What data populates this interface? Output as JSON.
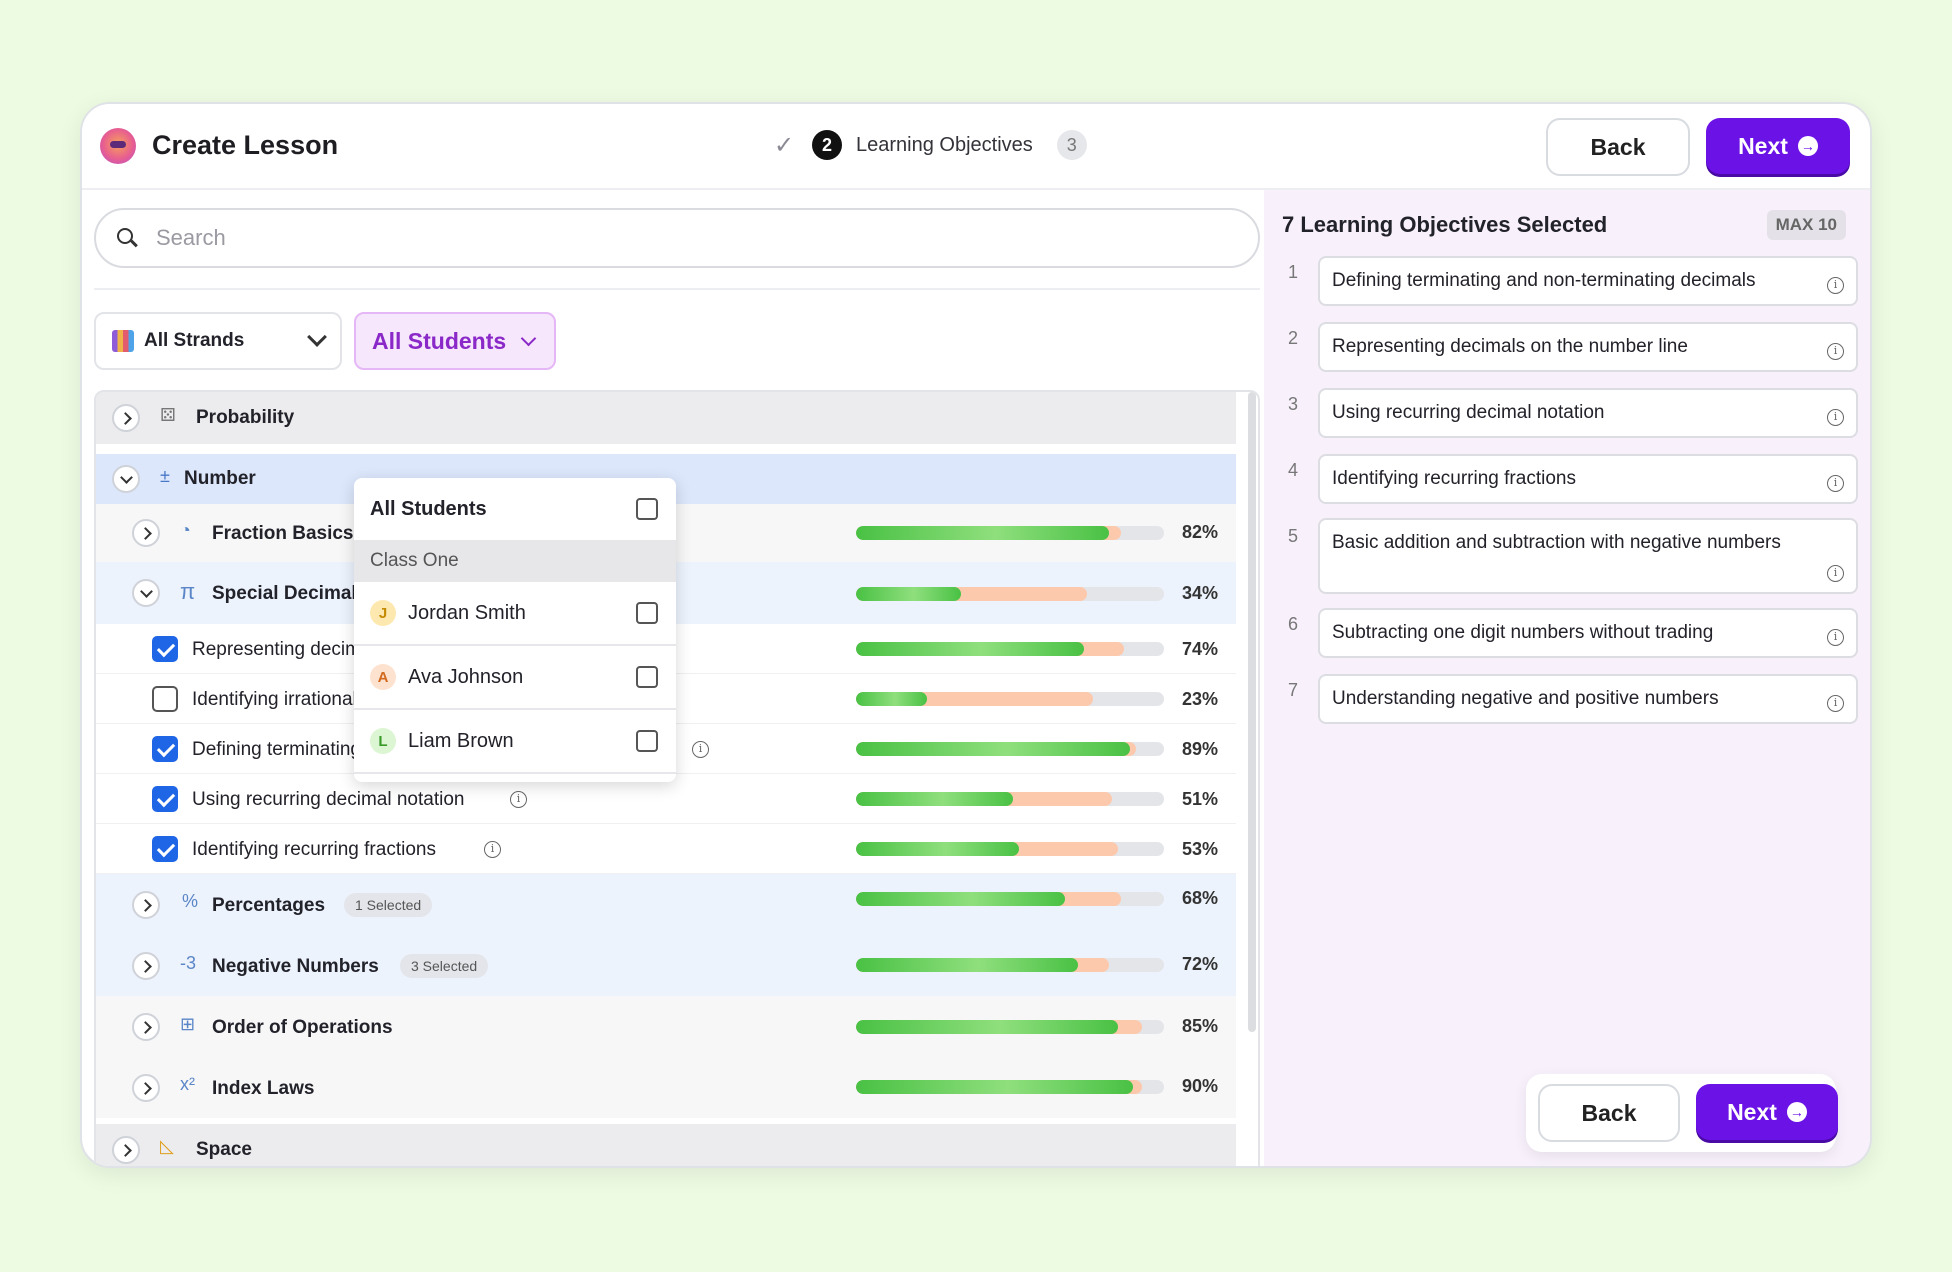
{
  "header": {
    "title": "Create Lesson",
    "steps": {
      "current_num": "2",
      "current_label": "Learning Objectives",
      "next_num": "3"
    },
    "back_label": "Back",
    "next_label": "Next"
  },
  "search": {
    "placeholder": "Search"
  },
  "filters": {
    "strands_label": "All Strands",
    "students_label": "All Students"
  },
  "tree": {
    "probability": "Probability",
    "number": "Number",
    "fraction_basics": {
      "label": "Fraction Basics",
      "pct": "82%",
      "green": 82,
      "orange": 86
    },
    "special_decimals": {
      "label": "Special Decimals",
      "pct": "34%",
      "green": 34,
      "orange": 75
    },
    "objectives": [
      {
        "label": "Representing decimals on the number line",
        "checked": true,
        "pct": "74%",
        "green": 74,
        "orange": 87
      },
      {
        "label": "Identifying irrational numbers",
        "checked": false,
        "pct": "23%",
        "green": 23,
        "orange": 77
      },
      {
        "label": "Defining terminating and non-terminating decimals",
        "checked": true,
        "pct": "89%",
        "green": 89,
        "orange": 91
      },
      {
        "label": "Using recurring decimal notation",
        "checked": true,
        "pct": "51%",
        "green": 51,
        "orange": 83
      },
      {
        "label": "Identifying recurring fractions",
        "checked": true,
        "pct": "53%",
        "green": 53,
        "orange": 85
      }
    ],
    "percentages": {
      "label": "Percentages",
      "badge": "1 Selected",
      "pct": "68%",
      "green": 68,
      "orange": 86
    },
    "negative_numbers": {
      "label": "Negative Numbers",
      "badge": "3 Selected",
      "pct": "72%",
      "green": 72,
      "orange": 82
    },
    "order_of_operations": {
      "label": "Order of Operations",
      "pct": "85%",
      "green": 85,
      "orange": 93
    },
    "index_laws": {
      "label": "Index Laws",
      "pct": "90%",
      "green": 90,
      "orange": 93
    },
    "space": "Space"
  },
  "students_dropdown": {
    "all_label": "All Students",
    "class_label": "Class One",
    "students": [
      {
        "initial": "J",
        "name": "Jordan Smith",
        "color": "#fde9b0",
        "text": "#c48a00"
      },
      {
        "initial": "A",
        "name": "Ava Johnson",
        "color": "#fde2cf",
        "text": "#d2691e"
      },
      {
        "initial": "L",
        "name": "Liam Brown",
        "color": "#dcf5d2",
        "text": "#3a9a2a"
      }
    ]
  },
  "selected_panel": {
    "title": "7 Learning Objectives Selected",
    "max_label": "MAX 10",
    "items": [
      {
        "num": "1",
        "label": "Defining terminating and non-terminating decimals"
      },
      {
        "num": "2",
        "label": "Representing decimals on the number line"
      },
      {
        "num": "3",
        "label": "Using recurring decimal notation"
      },
      {
        "num": "4",
        "label": "Identifying recurring fractions"
      },
      {
        "num": "5",
        "label": "Basic addition and subtraction with negative numbers"
      },
      {
        "num": "6",
        "label": "Subtracting one digit numbers without trading"
      },
      {
        "num": "7",
        "label": "Understanding negative and positive numbers"
      }
    ]
  },
  "colors": {
    "accent": "#6b12e6",
    "progress_green": "#49c144",
    "progress_orange": "#fdc9ad",
    "checkbox_blue": "#1f66e6"
  }
}
